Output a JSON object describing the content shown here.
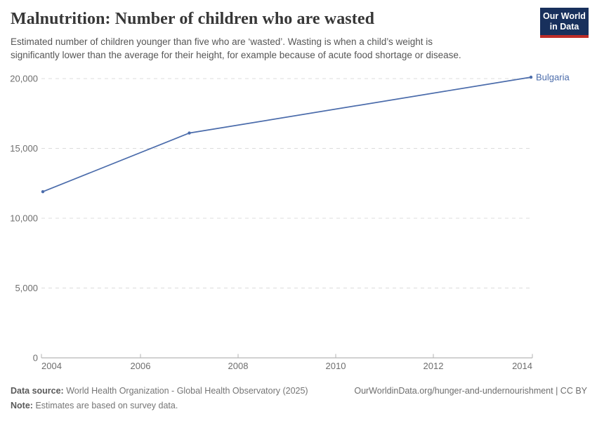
{
  "header": {
    "title": "Malnutrition: Number of children who are wasted",
    "subtitle": "Estimated number of children younger than five who are ‘wasted’. Wasting is when a child’s weight is significantly lower than the average for their height, for example because of acute food shortage or disease."
  },
  "logo": {
    "line1": "Our World",
    "line2": "in Data",
    "bg_color": "#18305c",
    "stripe_color": "#be2d28"
  },
  "chart_data": {
    "type": "line",
    "title": "Malnutrition: Number of children who are wasted",
    "xlabel": "",
    "ylabel": "",
    "xlim": [
      2004,
      2014
    ],
    "ylim": [
      0,
      20000
    ],
    "xticks": [
      2004,
      2006,
      2008,
      2010,
      2012,
      2014
    ],
    "yticks": [
      0,
      5000,
      10000,
      15000,
      20000
    ],
    "grid": "horizontal-dashed",
    "legend_position": "end-of-line-label",
    "series": [
      {
        "name": "Bulgaria",
        "color": "#4b6cab",
        "points": [
          {
            "x": 2004,
            "y": 11900
          },
          {
            "x": 2007,
            "y": 16100
          },
          {
            "x": 2014,
            "y": 20100
          }
        ]
      }
    ]
  },
  "footer": {
    "datasource_label": "Data source:",
    "datasource_value": "World Health Organization - Global Health Observatory (2025)",
    "url_text": "OurWorldinData.org/hunger-and-undernourishment | CC BY",
    "note_label": "Note:",
    "note_value": "Estimates are based on survey data."
  }
}
